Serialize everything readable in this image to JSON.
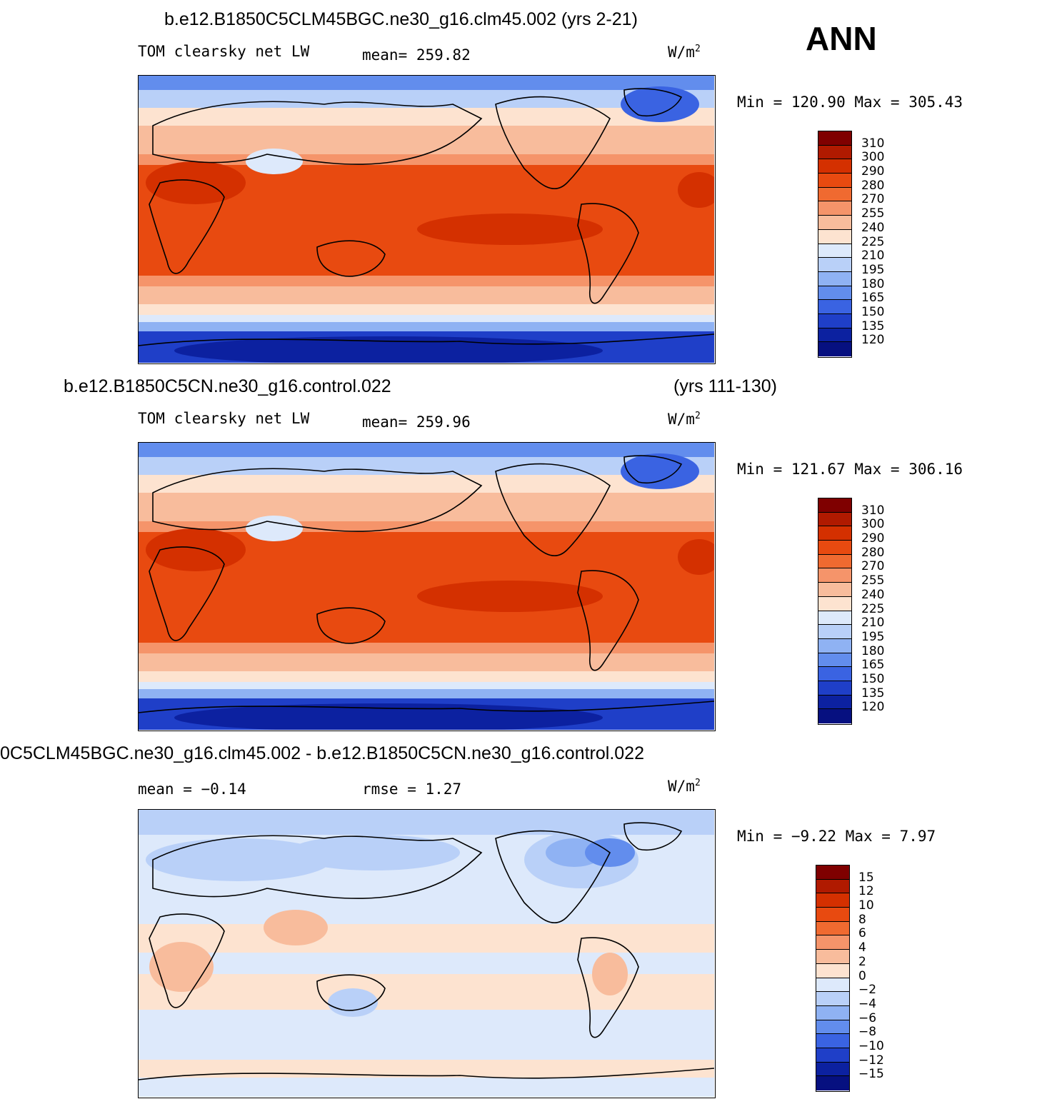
{
  "season": "ANN",
  "panels": [
    {
      "title_left": "b.e12.B1850C5CLM45BGC.ne30_g16.clm45.002 (yrs 2-21)",
      "title_right": "",
      "var_label": "TOM clearsky net LW",
      "mean_text": "mean= 259.82",
      "rmse_text": "",
      "units": "W/m",
      "units_sup": "2",
      "minmax": "Min = 120.90 Max = 305.43",
      "type": "abs"
    },
    {
      "title_left": "b.e12.B1850C5CN.ne30_g16.control.022",
      "title_right": "(yrs 111-130)",
      "var_label": "TOM clearsky net LW",
      "mean_text": "mean= 259.96",
      "rmse_text": "",
      "units": "W/m",
      "units_sup": "2",
      "minmax": "Min = 121.67 Max = 306.16",
      "type": "abs"
    },
    {
      "title_left": "0C5CLM45BGC.ne30_g16.clm45.002 - b.e12.B1850C5CN.ne30_g16.control.022",
      "title_right": "",
      "var_label": "",
      "mean_text": "mean =  −0.14",
      "rmse_text": "rmse =    1.27",
      "units": "W/m",
      "units_sup": "2",
      "minmax": "Min =  −9.22 Max =   7.97",
      "type": "diff"
    }
  ],
  "colorbar_abs": {
    "labels": [
      "310",
      "300",
      "290",
      "280",
      "270",
      "255",
      "240",
      "225",
      "210",
      "195",
      "180",
      "165",
      "150",
      "135",
      "120"
    ],
    "colors": [
      "#7f0000",
      "#b01a00",
      "#d43000",
      "#e84a10",
      "#f06a30",
      "#f5946a",
      "#f8bc9c",
      "#fde3d0",
      "#dde9fb",
      "#b9d0f8",
      "#8fb2f3",
      "#628ded",
      "#3a63e2",
      "#1f3fc8",
      "#0c21a0",
      "#061080"
    ]
  },
  "colorbar_diff": {
    "labels": [
      "15",
      "12",
      "10",
      "8",
      "6",
      "4",
      "2",
      "0",
      "−2",
      "−4",
      "−6",
      "−8",
      "−10",
      "−12",
      "−15"
    ],
    "colors": [
      "#7f0000",
      "#b01a00",
      "#d43000",
      "#e84a10",
      "#f06a30",
      "#f5946a",
      "#f8bc9c",
      "#fde3d0",
      "#dde9fb",
      "#b9d0f8",
      "#8fb2f3",
      "#628ded",
      "#3a63e2",
      "#1f3fc8",
      "#0c21a0",
      "#061080"
    ]
  }
}
